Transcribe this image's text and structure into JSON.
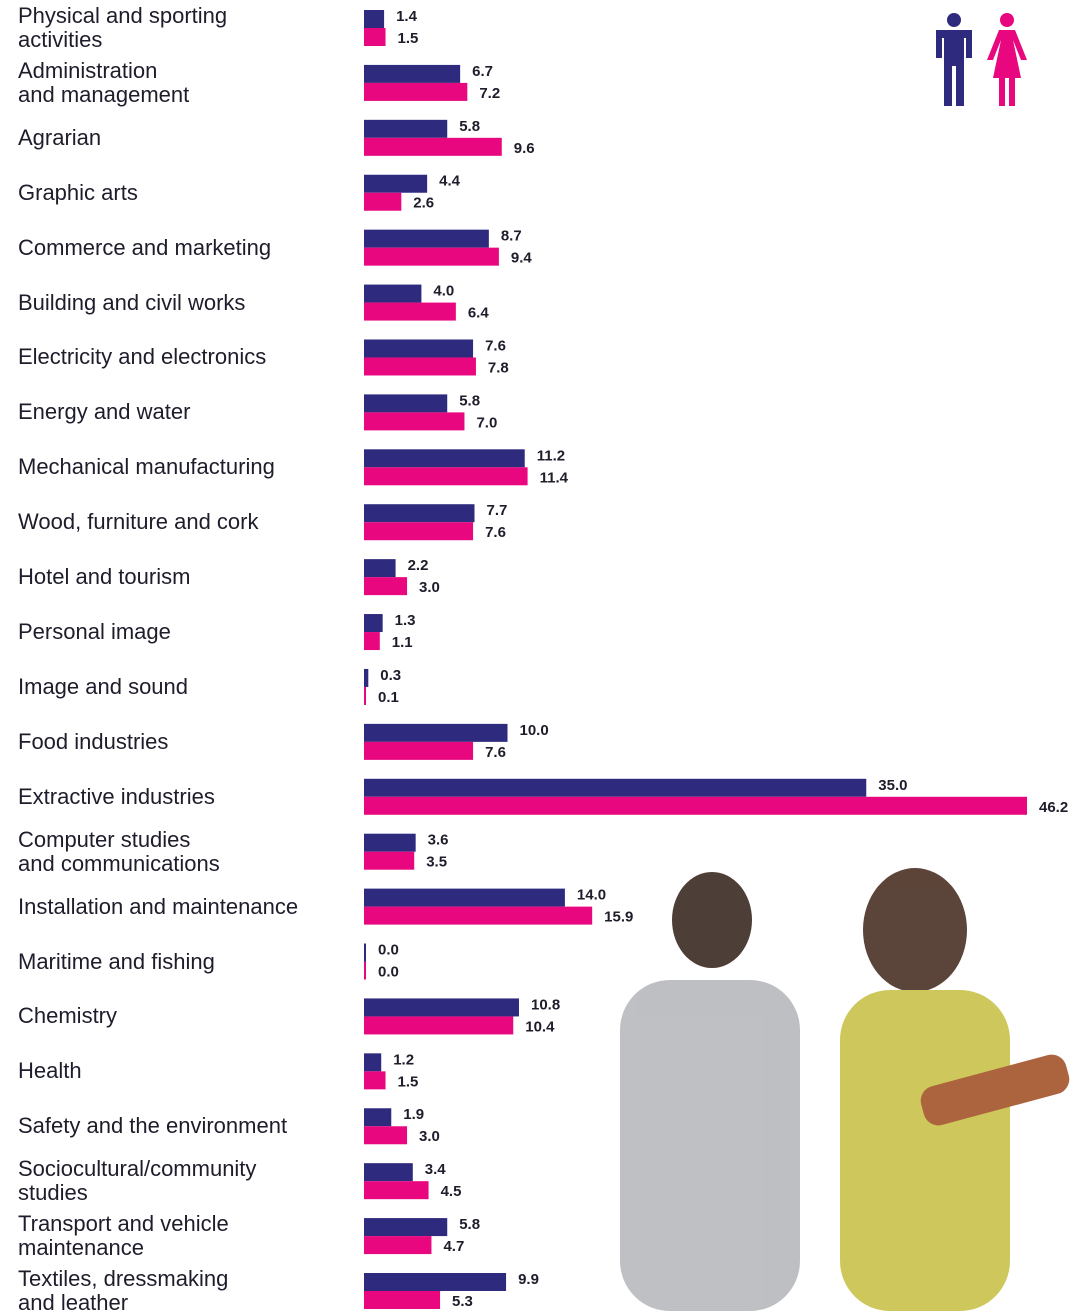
{
  "chart_data": {
    "type": "bar",
    "orientation": "horizontal",
    "categories": [
      "Physical and sporting\nactivities",
      "Administration\nand management",
      "Agrarian",
      "Graphic arts",
      "Commerce and marketing",
      "Building and civil works",
      "Electricity and electronics",
      "Energy and water",
      "Mechanical manufacturing",
      "Wood, furniture and cork",
      "Hotel and tourism",
      "Personal image",
      "Image and sound",
      "Food industries",
      "Extractive industries",
      "Computer studies\nand communications",
      "Installation and maintenance",
      "Maritime and fishing",
      "Chemistry",
      "Health",
      "Safety and the environment",
      "Sociocultural/community\nstudies",
      "Transport and vehicle\nmaintenance",
      "Textiles, dressmaking\nand leather"
    ],
    "series": [
      {
        "color": "#2e2a7e",
        "values": [
          1.4,
          6.7,
          5.8,
          4.4,
          8.7,
          4.0,
          7.6,
          5.8,
          11.2,
          7.7,
          2.2,
          1.3,
          0.3,
          10.0,
          35.0,
          3.6,
          14.0,
          0.0,
          10.8,
          1.2,
          1.9,
          3.4,
          5.8,
          9.9
        ],
        "value_labels": [
          "1.4",
          "6.7",
          "5.8",
          "4.4",
          "8.7",
          "4.0",
          "7.6",
          "5.8",
          "11.2",
          "7.7",
          "2.2",
          "1.3",
          "0.3",
          "10.0",
          "35.0",
          "3.6",
          "14.0",
          "0.0",
          "10.8",
          "1.2",
          "1.9",
          "3.4",
          "5.8",
          "9.9"
        ]
      },
      {
        "color": "#e8077f",
        "values": [
          1.5,
          7.2,
          9.6,
          2.6,
          9.4,
          6.4,
          7.8,
          7.0,
          11.4,
          7.6,
          3.0,
          1.1,
          0.1,
          7.6,
          46.2,
          3.5,
          15.9,
          0.0,
          10.4,
          1.5,
          3.0,
          4.5,
          4.7,
          5.3
        ],
        "value_labels": [
          "1.5",
          "7.2",
          "9.6",
          "2.6",
          "9.4",
          "6.4",
          "7.8",
          "7.0",
          "11.4",
          "7.6",
          "3.0",
          "1.1",
          "0.1",
          "7.6",
          "46.2",
          "3.5",
          "15.9",
          "0.0",
          "10.4",
          "1.5",
          "3.0",
          "4.5",
          "4.7",
          "5.3"
        ]
      }
    ]
  }
}
